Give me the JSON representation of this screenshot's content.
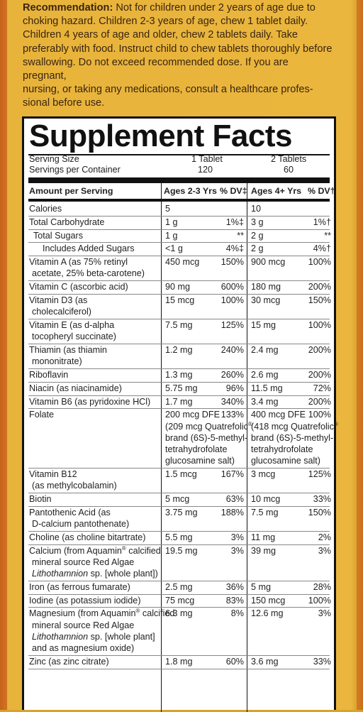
{
  "recommendation": {
    "label": "Recommendation:",
    "lines": [
      " Not for children under 2 years of age due to",
      "choking hazard. Children 2-3 years of age, chew 1 tablet daily.",
      "Children 4 years of age and older, chew 2 tablets daily. Take",
      "preferably with food. Instruct child to chew tablets thoroughly before",
      "swallowing. Do not exceed recommended dose. If you are pregnant,",
      "nursing, or taking any medications, consult a healthcare profes-",
      "sional before use."
    ]
  },
  "facts": {
    "title": "Supplement Facts",
    "serving_size_label": "Serving Size",
    "servings_label": "Servings per Container",
    "serving_size_a": "1 Tablet",
    "serving_size_b": "2 Tablets",
    "servings_a": "120",
    "servings_b": "60",
    "header": {
      "amount": "Amount per Serving",
      "group_a": "Ages 2-3 Yrs",
      "dv_a": "% DV‡",
      "group_b": "Ages 4+ Yrs",
      "dv_b": "% DV†"
    },
    "rows": [
      {
        "name": [
          "Calories"
        ],
        "a": [
          "5"
        ],
        "da": "",
        "b": [
          "10"
        ],
        "db": "",
        "indent": 0
      },
      {
        "name": [
          "Total Carbohydrate"
        ],
        "a": [
          "1 g"
        ],
        "da": "1%‡",
        "b": [
          "3 g"
        ],
        "db": "1%†",
        "indent": 0
      },
      {
        "name": [
          "Total Sugars"
        ],
        "a": [
          "1 g"
        ],
        "da": "**",
        "b": [
          "2 g"
        ],
        "db": "**",
        "indent": 1
      },
      {
        "name": [
          "Includes Added Sugars"
        ],
        "a": [
          "<1 g"
        ],
        "da": "4%‡",
        "b": [
          "2 g"
        ],
        "db": "4%†",
        "indent": 2
      },
      {
        "name": [
          "Vitamin A (as 75% retinyl",
          "acetate, 25% beta-carotene)"
        ],
        "a": [
          "450 mcg"
        ],
        "da": "150%",
        "b": [
          "900 mcg"
        ],
        "db": "100%",
        "indent": 0
      },
      {
        "name": [
          "Vitamin C (ascorbic acid)"
        ],
        "a": [
          "90 mg"
        ],
        "da": "600%",
        "b": [
          "180 mg"
        ],
        "db": "200%",
        "indent": 0
      },
      {
        "name": [
          "Vitamin D3 (as",
          "cholecalciferol)"
        ],
        "a": [
          "15 mcg"
        ],
        "da": "100%",
        "b": [
          "30 mcg"
        ],
        "db": "150%",
        "indent": 0
      },
      {
        "name": [
          "Vitamin E (as d-alpha",
          "tocopheryl succinate)"
        ],
        "a": [
          "7.5 mg"
        ],
        "da": "125%",
        "b": [
          "15 mg"
        ],
        "db": "100%",
        "indent": 0
      },
      {
        "name": [
          "Thiamin (as thiamin",
          "mononitrate)"
        ],
        "a": [
          "1.2 mg"
        ],
        "da": "240%",
        "b": [
          "2.4 mg"
        ],
        "db": "200%",
        "indent": 0
      },
      {
        "name": [
          "Riboflavin"
        ],
        "a": [
          "1.3 mg"
        ],
        "da": "260%",
        "b": [
          "2.6 mg"
        ],
        "db": "200%",
        "indent": 0
      },
      {
        "name": [
          "Niacin (as niacinamide)"
        ],
        "a": [
          "5.75 mg"
        ],
        "da": "96%",
        "b": [
          "11.5 mg"
        ],
        "db": "72%",
        "indent": 0
      },
      {
        "name": [
          "Vitamin B6 (as pyridoxine HCl)"
        ],
        "a": [
          "1.7 mg"
        ],
        "da": "340%",
        "b": [
          "3.4 mg"
        ],
        "db": "200%",
        "indent": 0
      },
      {
        "name": [
          "Folate"
        ],
        "a": [
          "200 mcg DFE",
          "(209 mcg Quatrefolic®",
          "brand (6S)-5-methyl-",
          "tetrahydrofolate",
          "glucosamine salt)"
        ],
        "da": "133%",
        "b": [
          "400 mcg DFE",
          "(418 mcg Quatrefolic®",
          "brand (6S)-5-methyl-",
          "tetrahydrofolate",
          "glucosamine salt)"
        ],
        "db": "100%",
        "indent": 0
      },
      {
        "name": [
          "Vitamin B12",
          "(as methylcobalamin)"
        ],
        "a": [
          "1.5 mcg"
        ],
        "da": "167%",
        "b": [
          "3 mcg"
        ],
        "db": "125%",
        "indent": 0
      },
      {
        "name": [
          "Biotin"
        ],
        "a": [
          "5 mcg"
        ],
        "da": "63%",
        "b": [
          "10 mcg"
        ],
        "db": "33%",
        "indent": 0
      },
      {
        "name": [
          "Pantothenic Acid (as",
          "D-calcium pantothenate)"
        ],
        "a": [
          "3.75 mg"
        ],
        "da": "188%",
        "b": [
          "7.5 mg"
        ],
        "db": "150%",
        "indent": 0
      },
      {
        "name": [
          "Choline (as choline bitartrate)"
        ],
        "a": [
          "5.5 mg"
        ],
        "da": "3%",
        "b": [
          "11 mg"
        ],
        "db": "2%",
        "indent": 0
      },
      {
        "name": [
          "Calcium (from Aquamin® calcified",
          "mineral source Red Algae",
          "Lithothamnion sp. [whole plant])"
        ],
        "a": [
          "19.5 mg"
        ],
        "da": "3%",
        "b": [
          "39 mg"
        ],
        "db": "3%",
        "indent": 0
      },
      {
        "name": [
          "Iron (as ferrous fumarate)"
        ],
        "a": [
          "2.5 mg"
        ],
        "da": "36%",
        "b": [
          "5 mg"
        ],
        "db": "28%",
        "indent": 0
      },
      {
        "name": [
          "Iodine (as potassium iodide)"
        ],
        "a": [
          "75 mcg"
        ],
        "da": "83%",
        "b": [
          "150 mcg"
        ],
        "db": "100%",
        "indent": 0
      },
      {
        "name": [
          "Magnesium (from Aquamin® calcified",
          "mineral source Red Algae",
          "Lithothamnion sp. [whole plant]",
          "and as magnesium oxide)"
        ],
        "a": [
          "6.3 mg"
        ],
        "da": "8%",
        "b": [
          "12.6 mg"
        ],
        "db": "3%",
        "indent": 0
      },
      {
        "name": [
          "Zinc (as zinc citrate)"
        ],
        "a": [
          "1.8 mg"
        ],
        "da": "60%",
        "b": [
          "3.6 mg"
        ],
        "db": "33%",
        "indent": 0
      }
    ]
  },
  "colors": {
    "package": "#eab63d",
    "panel": "#ffffff",
    "ink": "#111111"
  }
}
